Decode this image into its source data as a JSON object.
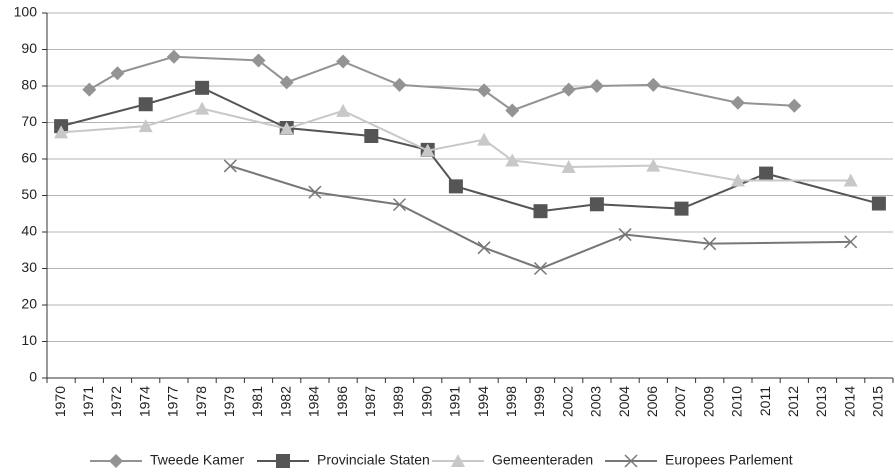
{
  "chart_data": {
    "type": "line",
    "categories": [
      "1970",
      "1971",
      "1972",
      "1974",
      "1977",
      "1978",
      "1979",
      "1981",
      "1982",
      "1984",
      "1986",
      "1987",
      "1989",
      "1990",
      "1991",
      "1994",
      "1998",
      "1999",
      "2002",
      "2003",
      "2004",
      "2006",
      "2007",
      "2009",
      "2010",
      "2011",
      "2012",
      "2013",
      "2014",
      "2015"
    ],
    "series": [
      {
        "name": "Tweede Kamer",
        "color": "#939393",
        "marker": "diamond",
        "x": [
          "1971",
          "1972",
          "1977",
          "1981",
          "1982",
          "1986",
          "1989",
          "1994",
          "1998",
          "2002",
          "2003",
          "2006",
          "2010",
          "2012"
        ],
        "values": [
          79,
          83.5,
          88,
          87,
          81,
          86.7,
          80.3,
          78.8,
          73.3,
          79,
          80,
          80.3,
          75.4,
          74.6
        ]
      },
      {
        "name": "Provinciale Staten",
        "color": "#555555",
        "marker": "square",
        "x": [
          "1970",
          "1974",
          "1978",
          "1982",
          "1987",
          "1990",
          "1991",
          "1999",
          "2003",
          "2007",
          "2011",
          "2015"
        ],
        "values": [
          69,
          75,
          79.5,
          68.5,
          66.3,
          62.5,
          52.5,
          45.7,
          47.6,
          46.4,
          56,
          47.8
        ]
      },
      {
        "name": "Gemeenteraden",
        "color": "#c8c8c8",
        "marker": "triangle",
        "x": [
          "1970",
          "1974",
          "1978",
          "1982",
          "1986",
          "1990",
          "1994",
          "1998",
          "2002",
          "2006",
          "2010",
          "2014"
        ],
        "values": [
          67.3,
          69,
          73.8,
          68.3,
          73.2,
          62.3,
          65.3,
          59.6,
          57.8,
          58.2,
          54.1,
          54.1
        ]
      },
      {
        "name": "Europees Parlement",
        "color": "#777777",
        "marker": "x",
        "x": [
          "1979",
          "1984",
          "1989",
          "1994",
          "1999",
          "2004",
          "2009",
          "2014"
        ],
        "values": [
          58.1,
          50.9,
          47.5,
          35.7,
          30,
          39.3,
          36.8,
          37.3
        ]
      }
    ],
    "ylim": [
      0,
      100
    ],
    "yticks": [
      0,
      10,
      20,
      30,
      40,
      50,
      60,
      70,
      80,
      90,
      100
    ],
    "grid": true,
    "legend": "bottom"
  }
}
